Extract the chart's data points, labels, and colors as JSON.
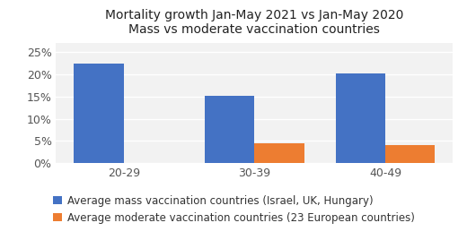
{
  "title_line1": "Mortality growth Jan-May 2021 vs Jan-May 2020",
  "title_line2": "Mass vs moderate vaccination countries",
  "categories": [
    "20-29",
    "30-39",
    "40-49"
  ],
  "mass_vaccination": [
    0.225,
    0.152,
    0.201
  ],
  "moderate_vaccination": [
    0.0,
    0.045,
    0.041
  ],
  "bar_color_mass": "#4472C4",
  "bar_color_moderate": "#ED7D31",
  "legend_mass": "Average mass vaccination countries (Israel, UK, Hungary)",
  "legend_moderate": "Average moderate vaccination countries (23 European countries)",
  "ylim": [
    0,
    0.27
  ],
  "yticks": [
    0,
    0.05,
    0.1,
    0.15,
    0.2,
    0.25
  ],
  "background_color": "#ffffff",
  "plot_bg_color": "#f2f2f2",
  "bar_width": 0.38,
  "title_fontsize": 10,
  "tick_fontsize": 9,
  "legend_fontsize": 8.5
}
